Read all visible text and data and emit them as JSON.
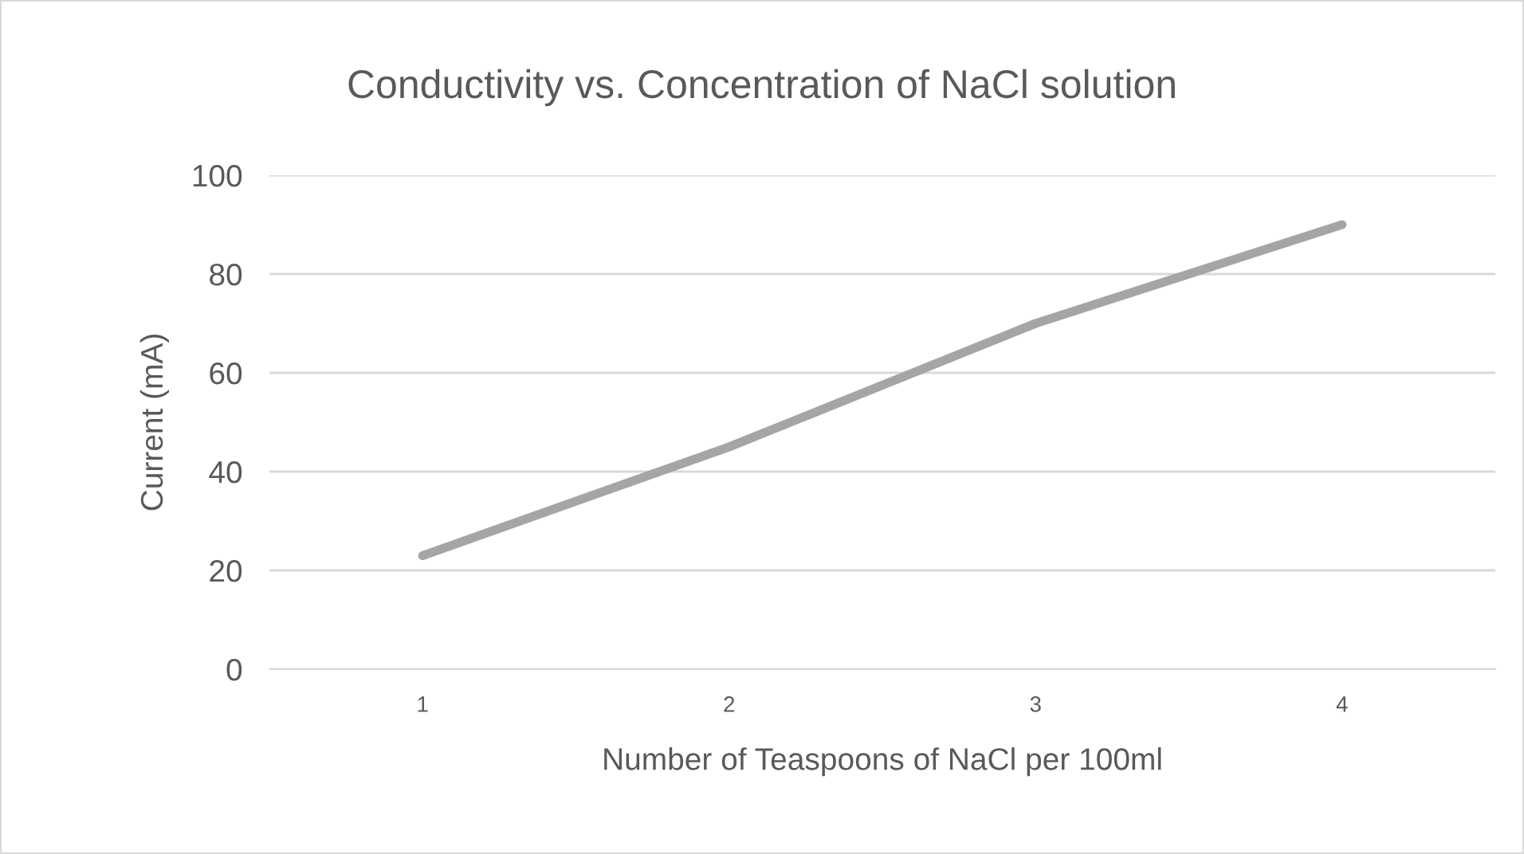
{
  "chart_data": {
    "type": "line",
    "title": "Conductivity vs. Concentration of NaCl solution",
    "xlabel": "Number of Teaspoons of NaCl per 100ml",
    "ylabel": "Current (mA)",
    "categories": [
      "1",
      "2",
      "3",
      "4"
    ],
    "series": [
      {
        "color": "#a5a5a5",
        "values": [
          23,
          45,
          70,
          90
        ]
      }
    ],
    "ylim": [
      0,
      100
    ],
    "yticks": [
      0,
      20,
      40,
      60,
      80,
      100
    ],
    "grid": "y",
    "marker": "none",
    "line_style": "solid"
  }
}
